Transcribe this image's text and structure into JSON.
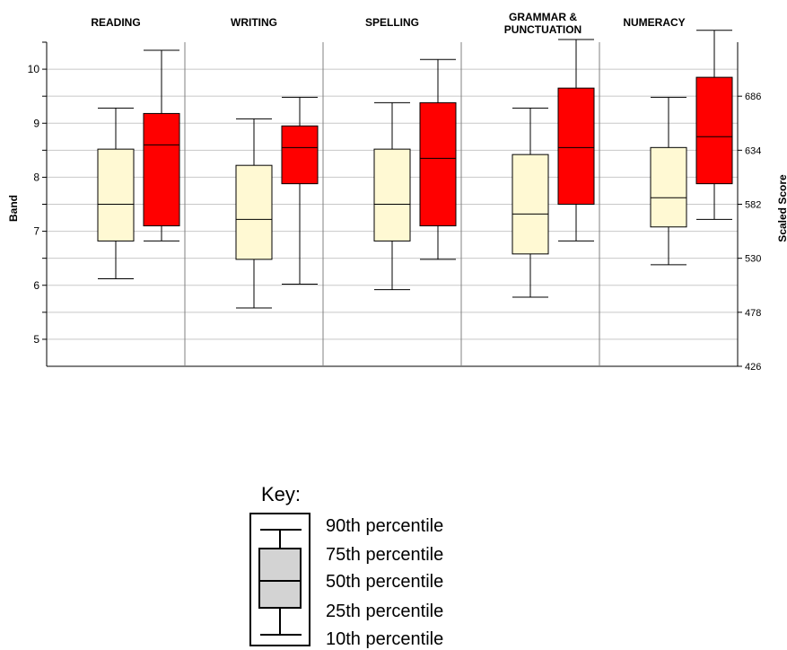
{
  "chart_data": {
    "type": "boxplot",
    "domains": [
      "READING",
      "WRITING",
      "SPELLING",
      "GRAMMAR &\nPUNCTUATION",
      "NUMERACY"
    ],
    "ylabel_left": "Band",
    "ylabel_right": "Scaled Score",
    "left_ticks": [
      "5",
      "6",
      "7",
      "8",
      "9",
      "10"
    ],
    "right_ticks": [
      "426",
      "478",
      "530",
      "582",
      "634",
      "686"
    ],
    "ylim_band": [
      4.5,
      10.5
    ],
    "series_colors": [
      "#fff9d3",
      "#ff0000"
    ],
    "boxes": [
      {
        "domain": "READING",
        "series": 0,
        "p10": 6.12,
        "p25": 6.82,
        "p50": 7.5,
        "p75": 8.52,
        "p90": 9.28
      },
      {
        "domain": "READING",
        "series": 1,
        "p10": 6.82,
        "p25": 7.1,
        "p50": 8.6,
        "p75": 9.18,
        "p90": 10.35
      },
      {
        "domain": "WRITING",
        "series": 0,
        "p10": 5.58,
        "p25": 6.48,
        "p50": 7.22,
        "p75": 8.22,
        "p90": 9.08
      },
      {
        "domain": "WRITING",
        "series": 1,
        "p10": 6.02,
        "p25": 7.88,
        "p50": 8.55,
        "p75": 8.95,
        "p90": 9.48
      },
      {
        "domain": "SPELLING",
        "series": 0,
        "p10": 5.92,
        "p25": 6.82,
        "p50": 7.5,
        "p75": 8.52,
        "p90": 9.38
      },
      {
        "domain": "SPELLING",
        "series": 1,
        "p10": 6.48,
        "p25": 7.1,
        "p50": 8.35,
        "p75": 9.38,
        "p90": 10.18
      },
      {
        "domain": "GRAMMAR & PUNCTUATION",
        "series": 0,
        "p10": 5.78,
        "p25": 6.58,
        "p50": 7.32,
        "p75": 8.42,
        "p90": 9.28
      },
      {
        "domain": "GRAMMAR & PUNCTUATION",
        "series": 1,
        "p10": 6.82,
        "p25": 7.5,
        "p50": 8.55,
        "p75": 9.65,
        "p90": 10.55
      },
      {
        "domain": "NUMERACY",
        "series": 0,
        "p10": 6.38,
        "p25": 7.08,
        "p50": 7.62,
        "p75": 8.55,
        "p90": 9.48
      },
      {
        "domain": "NUMERACY",
        "series": 1,
        "p10": 7.22,
        "p25": 7.88,
        "p50": 8.75,
        "p75": 9.85,
        "p90": 10.72
      }
    ]
  },
  "key": {
    "title": "Key:",
    "labels": [
      "90th percentile",
      "75th percentile",
      "50th percentile",
      "25th percentile",
      "10th percentile"
    ]
  }
}
